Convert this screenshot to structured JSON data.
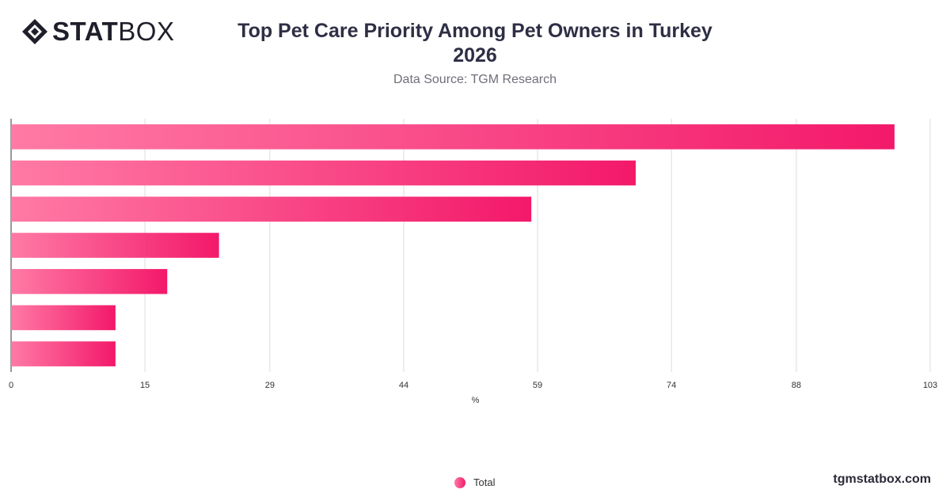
{
  "header": {
    "logo_bold": "STAT",
    "logo_light": "BOX",
    "title_line1": "Top Pet Care Priority Among Pet Owners in Turkey",
    "title_line2": "2026",
    "subtitle": "Data Source: TGM Research"
  },
  "footer": {
    "site": "tgmstatbox.com"
  },
  "legend": {
    "label": "Total"
  },
  "colors": {
    "bar_start": "#ff7aa5",
    "bar_end": "#f3196a",
    "grid": "#dcdcdc",
    "axis": "#333333"
  },
  "chart_data": {
    "type": "bar",
    "orientation": "horizontal",
    "categories": [
      "",
      "",
      "",
      "",
      "",
      "",
      ""
    ],
    "series": [
      {
        "name": "Total",
        "values": [
          99,
          70,
          58.3,
          23.3,
          17.5,
          11.7,
          11.7
        ]
      }
    ],
    "xlabel": "%",
    "xlim": [
      0,
      103
    ],
    "xticks": [
      "0",
      "15",
      "29",
      "44",
      "59",
      "74",
      "88",
      "103"
    ],
    "grid": true,
    "legend_position": "bottom-center"
  }
}
